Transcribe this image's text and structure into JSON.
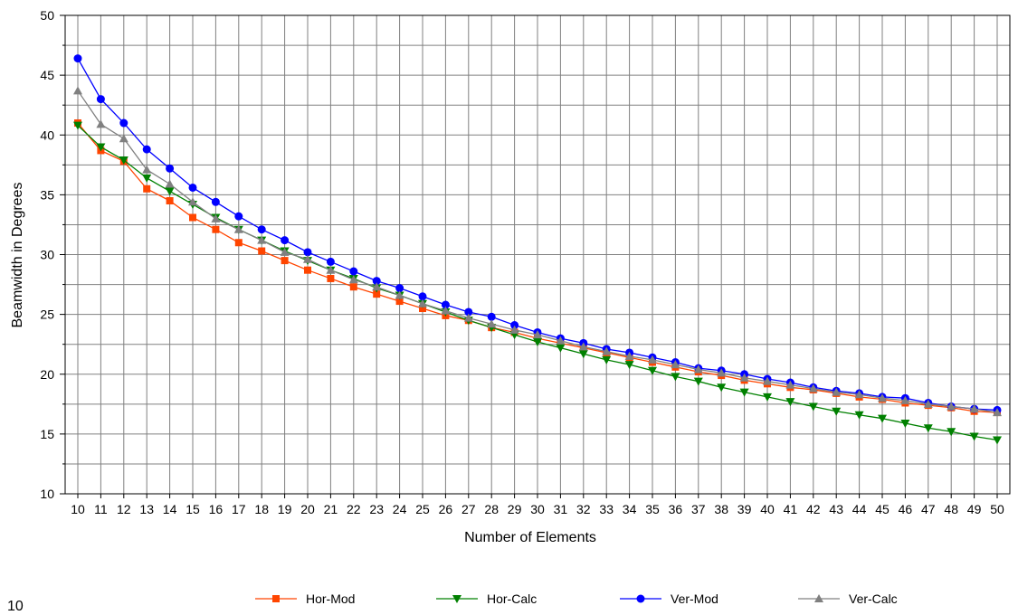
{
  "chart_data": {
    "type": "line",
    "title": "",
    "xlabel": "Number of Elements",
    "ylabel": "Beamwidth in Degrees",
    "ylim": [
      10,
      50
    ],
    "yticks": [
      10,
      15,
      20,
      25,
      30,
      35,
      40,
      45,
      50
    ],
    "grid": true,
    "legend_position": "bottom",
    "x": [
      10,
      11,
      12,
      13,
      14,
      15,
      16,
      17,
      18,
      19,
      20,
      21,
      22,
      23,
      24,
      25,
      26,
      27,
      28,
      29,
      30,
      31,
      32,
      33,
      34,
      35,
      36,
      37,
      38,
      39,
      40,
      41,
      42,
      43,
      44,
      45,
      46,
      47,
      48,
      49,
      50
    ],
    "series": [
      {
        "name": "Hor-Mod",
        "color": "#ff4500",
        "marker": "square",
        "values": [
          41.0,
          38.7,
          37.8,
          35.5,
          34.5,
          33.1,
          32.1,
          31.0,
          30.3,
          29.5,
          28.7,
          28.0,
          27.3,
          26.7,
          26.1,
          25.5,
          24.9,
          24.5,
          23.9,
          23.5,
          23.0,
          22.6,
          22.2,
          21.8,
          21.4,
          21.0,
          20.6,
          20.2,
          19.9,
          19.5,
          19.2,
          18.9,
          18.7,
          18.4,
          18.1,
          17.9,
          17.6,
          17.4,
          17.2,
          16.9,
          16.8
        ]
      },
      {
        "name": "Hor-Calc",
        "color": "#008000",
        "marker": "triangle-down",
        "values": [
          40.8,
          39.0,
          37.9,
          36.4,
          35.3,
          34.2,
          33.1,
          32.1,
          31.2,
          30.3,
          29.5,
          28.7,
          28.0,
          27.2,
          26.6,
          25.9,
          25.2,
          24.5,
          23.9,
          23.3,
          22.7,
          22.2,
          21.7,
          21.2,
          20.8,
          20.3,
          19.8,
          19.4,
          18.9,
          18.5,
          18.1,
          17.7,
          17.3,
          16.9,
          16.6,
          16.3,
          15.9,
          15.5,
          15.2,
          14.8,
          14.5
        ]
      },
      {
        "name": "Ver-Mod",
        "color": "#0000ff",
        "marker": "circle",
        "values": [
          46.4,
          43.0,
          41.0,
          38.8,
          37.2,
          35.6,
          34.4,
          33.2,
          32.1,
          31.2,
          30.2,
          29.4,
          28.6,
          27.8,
          27.2,
          26.5,
          25.8,
          25.2,
          24.8,
          24.1,
          23.5,
          23.0,
          22.6,
          22.1,
          21.8,
          21.4,
          21.0,
          20.5,
          20.3,
          20.0,
          19.6,
          19.3,
          18.9,
          18.6,
          18.4,
          18.1,
          18.0,
          17.6,
          17.3,
          17.1,
          17.0
        ]
      },
      {
        "name": "Ver-Calc",
        "color": "#808080",
        "marker": "triangle-up",
        "values": [
          43.7,
          40.9,
          39.7,
          37.1,
          35.9,
          34.4,
          33.0,
          32.1,
          31.2,
          30.2,
          29.6,
          28.7,
          27.9,
          27.3,
          26.6,
          25.9,
          25.3,
          24.7,
          24.2,
          23.7,
          23.3,
          22.8,
          22.3,
          21.9,
          21.5,
          21.2,
          20.8,
          20.4,
          20.1,
          19.7,
          19.4,
          19.1,
          18.8,
          18.5,
          18.3,
          18.0,
          17.8,
          17.5,
          17.3,
          17.1,
          16.8
        ]
      }
    ]
  },
  "stray_text": "10"
}
